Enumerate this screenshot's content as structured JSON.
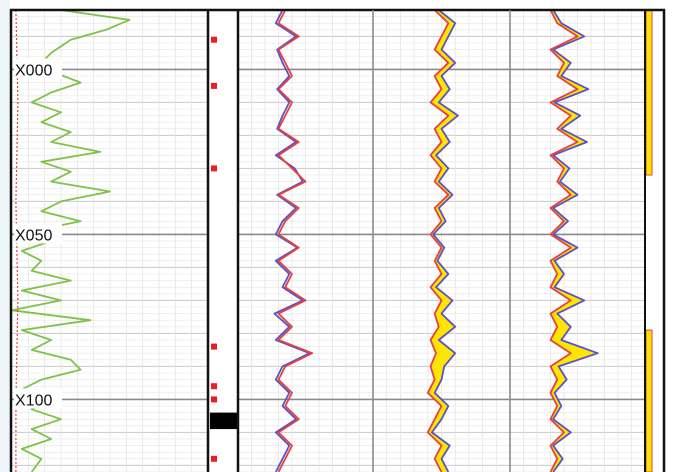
{
  "chart_data": {
    "type": "line",
    "title": "",
    "depth_axis": {
      "unit": "",
      "range": [
        -18,
        122
      ],
      "ticks": [
        0,
        50,
        100
      ],
      "tick_labels": [
        "X000",
        "X050",
        "X100"
      ]
    },
    "tracks": [
      {
        "name": "",
        "series": [
          {
            "color": "#7fc24a",
            "depths": [
              -18,
              -15,
              -12,
              -9,
              -5,
              -2,
              1,
              4,
              7,
              10,
              13,
              16,
              19,
              22,
              25,
              28,
              31,
              34,
              37,
              40,
              43,
              46,
              49,
              52,
              55,
              58,
              61,
              64,
              67,
              70,
              73,
              76,
              79,
              82,
              85,
              88,
              91,
              94,
              97,
              100,
              103,
              106,
              109,
              112,
              115,
              118,
              122
            ],
            "values": [
              0.25,
              0.6,
              0.48,
              0.3,
              0.2,
              0.15,
              0.22,
              0.35,
              0.2,
              0.1,
              0.25,
              0.15,
              0.3,
              0.2,
              0.45,
              0.15,
              0.3,
              0.2,
              0.5,
              0.25,
              0.15,
              0.35,
              0.1,
              0.2,
              0.05,
              0.15,
              0.1,
              0.3,
              0.05,
              0.25,
              0.0,
              0.4,
              0.05,
              0.2,
              0.1,
              0.3,
              0.35,
              0.15,
              0.05,
              0.2,
              0.1,
              0.25,
              0.1,
              0.2,
              0.05,
              0.15,
              0.1
            ],
            "xlim": [
              0,
              1
            ]
          },
          {
            "color": "#e84040",
            "style": "dotted",
            "depths": [
              -18,
              10,
              40,
              70,
              100,
              122
            ],
            "values": [
              0.02,
              0.03,
              0.02,
              0.03,
              0.02,
              0.02
            ],
            "xlim": [
              0,
              1
            ]
          }
        ]
      },
      {
        "name": "",
        "markers": [
          -9,
          5,
          30,
          84,
          96,
          100,
          118
        ],
        "marker_color": "#ee1c24",
        "flag_block": [
          104,
          109
        ]
      },
      {
        "name": "",
        "series": [
          {
            "color": "#e84040",
            "depths": [
              -18,
              -14,
              -10,
              -6,
              -2,
              2,
              6,
              10,
              14,
              18,
              22,
              26,
              30,
              34,
              38,
              42,
              46,
              50,
              54,
              58,
              62,
              66,
              70,
              74,
              78,
              82,
              86,
              90,
              94,
              98,
              102,
              106,
              110,
              114,
              118,
              122
            ],
            "values": [
              0.35,
              0.3,
              0.45,
              0.3,
              0.35,
              0.4,
              0.3,
              0.4,
              0.35,
              0.3,
              0.45,
              0.3,
              0.4,
              0.5,
              0.3,
              0.45,
              0.35,
              0.3,
              0.45,
              0.3,
              0.4,
              0.35,
              0.5,
              0.3,
              0.4,
              0.3,
              0.55,
              0.35,
              0.3,
              0.4,
              0.35,
              0.45,
              0.3,
              0.4,
              0.35,
              0.3
            ],
            "xlim": [
              0,
              1
            ]
          },
          {
            "color": "#5a52c8",
            "depths": [
              -18,
              -14,
              -10,
              -6,
              -2,
              2,
              6,
              10,
              14,
              18,
              22,
              26,
              30,
              34,
              38,
              42,
              46,
              50,
              54,
              58,
              62,
              66,
              70,
              74,
              78,
              82,
              86,
              90,
              94,
              98,
              102,
              106,
              110,
              114,
              118,
              122
            ],
            "values": [
              0.33,
              0.28,
              0.43,
              0.29,
              0.33,
              0.38,
              0.29,
              0.38,
              0.33,
              0.29,
              0.43,
              0.28,
              0.42,
              0.48,
              0.29,
              0.43,
              0.33,
              0.28,
              0.44,
              0.28,
              0.38,
              0.33,
              0.48,
              0.27,
              0.38,
              0.28,
              0.53,
              0.33,
              0.28,
              0.38,
              0.33,
              0.43,
              0.28,
              0.38,
              0.33,
              0.28
            ],
            "xlim": [
              0,
              1
            ]
          }
        ]
      },
      {
        "name": "",
        "series": [
          {
            "color": "#e84040",
            "fill_between": "#ffe600",
            "depths": [
              -18,
              -14,
              -10,
              -6,
              -2,
              2,
              6,
              10,
              14,
              18,
              22,
              26,
              30,
              34,
              38,
              42,
              46,
              50,
              54,
              58,
              62,
              66,
              70,
              74,
              78,
              82,
              86,
              90,
              94,
              98,
              102,
              106,
              110,
              114,
              118,
              122
            ],
            "values": [
              0.45,
              0.55,
              0.5,
              0.45,
              0.55,
              0.45,
              0.5,
              0.42,
              0.55,
              0.45,
              0.5,
              0.42,
              0.5,
              0.45,
              0.55,
              0.45,
              0.5,
              0.42,
              0.5,
              0.45,
              0.5,
              0.42,
              0.5,
              0.45,
              0.48,
              0.42,
              0.46,
              0.42,
              0.45,
              0.4,
              0.5,
              0.45,
              0.4,
              0.5,
              0.45,
              0.5
            ],
            "xlim": [
              0,
              1
            ]
          },
          {
            "color": "#5a52c8",
            "depths": [
              -18,
              -14,
              -10,
              -6,
              -2,
              2,
              6,
              10,
              14,
              18,
              22,
              26,
              30,
              34,
              38,
              42,
              46,
              50,
              54,
              58,
              62,
              66,
              70,
              74,
              78,
              82,
              86,
              90,
              94,
              98,
              102,
              106,
              110,
              114,
              118,
              122
            ],
            "values": [
              0.48,
              0.6,
              0.55,
              0.5,
              0.6,
              0.5,
              0.56,
              0.48,
              0.62,
              0.5,
              0.56,
              0.46,
              0.55,
              0.48,
              0.58,
              0.48,
              0.53,
              0.44,
              0.52,
              0.47,
              0.55,
              0.46,
              0.58,
              0.5,
              0.6,
              0.48,
              0.6,
              0.52,
              0.5,
              0.45,
              0.55,
              0.5,
              0.43,
              0.56,
              0.5,
              0.55
            ],
            "xlim": [
              0,
              1
            ]
          }
        ]
      },
      {
        "name": "",
        "series": [
          {
            "color": "#e84040",
            "fill_between": "#ffe600",
            "depths": [
              -18,
              -14,
              -10,
              -6,
              -2,
              2,
              6,
              10,
              14,
              18,
              22,
              26,
              30,
              34,
              38,
              42,
              46,
              50,
              54,
              58,
              62,
              66,
              70,
              74,
              78,
              82,
              86,
              90,
              94,
              98,
              102,
              106,
              110,
              114,
              118,
              122
            ],
            "values": [
              0.3,
              0.35,
              0.5,
              0.3,
              0.4,
              0.35,
              0.5,
              0.3,
              0.45,
              0.35,
              0.5,
              0.3,
              0.4,
              0.35,
              0.45,
              0.3,
              0.4,
              0.3,
              0.45,
              0.3,
              0.35,
              0.3,
              0.45,
              0.3,
              0.35,
              0.3,
              0.45,
              0.3,
              0.35,
              0.3,
              0.35,
              0.3,
              0.4,
              0.3,
              0.35,
              0.3
            ],
            "xlim": [
              0,
              1
            ]
          },
          {
            "color": "#5a52c8",
            "depths": [
              -18,
              -14,
              -10,
              -6,
              -2,
              2,
              6,
              10,
              14,
              18,
              22,
              26,
              30,
              34,
              38,
              42,
              46,
              50,
              54,
              58,
              62,
              66,
              70,
              74,
              78,
              82,
              86,
              90,
              94,
              98,
              102,
              106,
              110,
              114,
              118,
              122
            ],
            "values": [
              0.32,
              0.38,
              0.55,
              0.32,
              0.45,
              0.38,
              0.58,
              0.33,
              0.52,
              0.38,
              0.57,
              0.32,
              0.44,
              0.37,
              0.5,
              0.32,
              0.43,
              0.32,
              0.5,
              0.33,
              0.4,
              0.33,
              0.55,
              0.35,
              0.45,
              0.38,
              0.65,
              0.36,
              0.42,
              0.33,
              0.38,
              0.32,
              0.45,
              0.32,
              0.39,
              0.32
            ],
            "xlim": [
              0,
              1
            ]
          }
        ]
      },
      {
        "name": "",
        "bars": [
          {
            "from": -18,
            "to": 32,
            "color": "#ffe600",
            "edge": "#e84040"
          },
          {
            "from": 79,
            "to": 122,
            "color": "#ffe600",
            "edge": "#e84040"
          }
        ]
      }
    ]
  }
}
